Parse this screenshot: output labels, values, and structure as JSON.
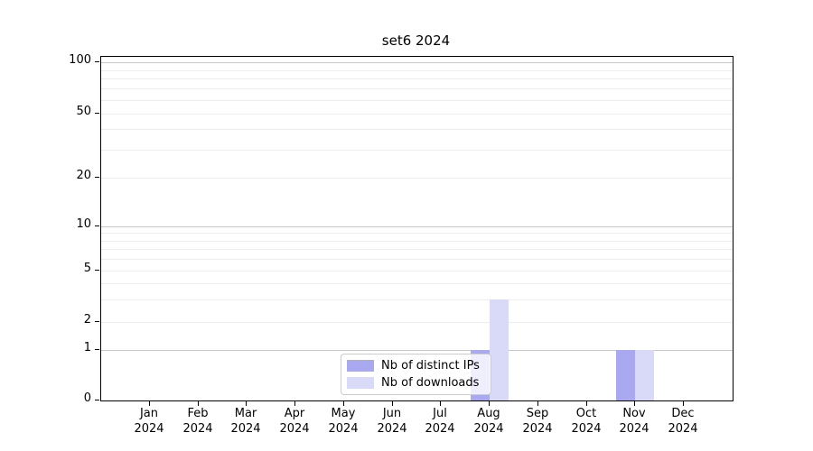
{
  "chart_data": {
    "type": "bar",
    "title": "set6 2024",
    "categories": [
      "Jan",
      "Feb",
      "Mar",
      "Apr",
      "May",
      "Jun",
      "Jul",
      "Aug",
      "Sep",
      "Oct",
      "Nov",
      "Dec"
    ],
    "year_label": "2024",
    "series": [
      {
        "name": "Nb of distinct IPs",
        "color": "#a9a9f1",
        "values": [
          0,
          0,
          0,
          0,
          0,
          0,
          0,
          1,
          0,
          0,
          1,
          0
        ]
      },
      {
        "name": "Nb of downloads",
        "color": "#d9d9f8",
        "values": [
          0,
          0,
          0,
          0,
          0,
          0,
          0,
          3,
          0,
          0,
          1,
          0
        ]
      }
    ],
    "yaxis": {
      "scale": "log-like (linear 0-1, log above)",
      "ticks_labeled": [
        0,
        1,
        2,
        5,
        10,
        20,
        50,
        100
      ],
      "gridlines_emphasis": [
        1,
        10,
        100
      ],
      "gridlines_light": [
        2,
        3,
        4,
        5,
        6,
        7,
        8,
        9,
        20,
        30,
        40,
        50,
        60,
        70,
        80,
        90
      ],
      "range": [
        0,
        110
      ]
    },
    "xlabel": "",
    "ylabel": "",
    "grid": true,
    "legend": {
      "position": "bottom-center-inside",
      "entries": [
        "Nb of distinct IPs",
        "Nb of downloads"
      ]
    },
    "colors": {
      "grid_emphasis": "#c9c9c9",
      "grid_light": "#ededed",
      "axis": "#000000",
      "background": "#ffffff"
    }
  }
}
